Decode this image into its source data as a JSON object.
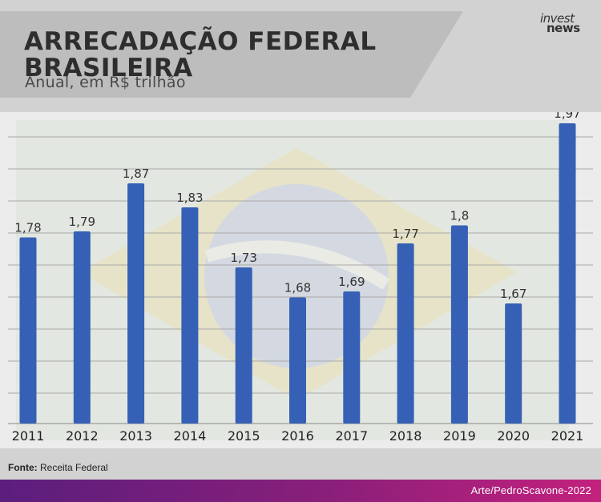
{
  "header": {
    "title": "ARRECADAÇÃO FEDERAL BRASILEIRA",
    "subtitle": "Anual, em R$ trilhão"
  },
  "logo": {
    "line1": "invest",
    "line2": "news"
  },
  "footer": {
    "source_label": "Fonte:",
    "source_value": "Receita Federal",
    "credit": "Arte/PedroScavone-2022"
  },
  "colors": {
    "bar": "#3560b5",
    "gridline": "#a8a8a8",
    "label": "#333333"
  },
  "chart_data": {
    "type": "bar",
    "categories": [
      "2011",
      "2012",
      "2013",
      "2014",
      "2015",
      "2016",
      "2017",
      "2018",
      "2019",
      "2020",
      "2021"
    ],
    "values": [
      1.78,
      1.79,
      1.87,
      1.83,
      1.73,
      1.68,
      1.69,
      1.77,
      1.8,
      1.67,
      1.97
    ],
    "value_labels": [
      "1,78",
      "1,79",
      "1,87",
      "1,83",
      "1,73",
      "1,68",
      "1,69",
      "1,77",
      "1,8",
      "1,67",
      "1,97"
    ],
    "title": "ARRECADAÇÃO FEDERAL BRASILEIRA",
    "subtitle": "Anual, em R$ trilhão",
    "xlabel": "",
    "ylabel": "",
    "ylim": [
      1.47,
      1.97
    ],
    "grid": true,
    "legend": "none"
  }
}
